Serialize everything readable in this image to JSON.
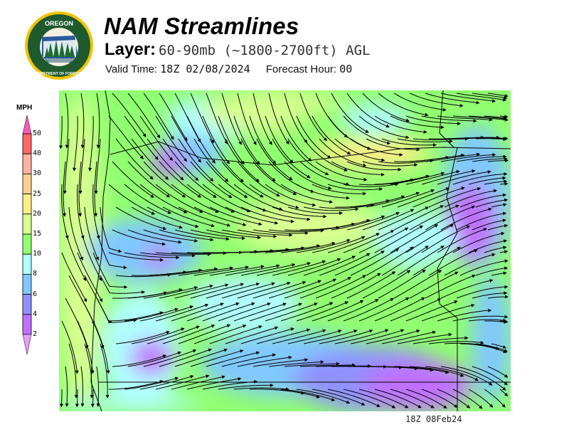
{
  "logo": {
    "top_text": "OREGON",
    "bottom_text": "DEPARTMENT OF FORESTRY"
  },
  "header": {
    "title": "NAM Streamlines",
    "layer_label": "Layer:",
    "layer_value": "60-90mb (~1800-2700ft) AGL",
    "valid_time_label": "Valid Time:",
    "valid_time_value": "18Z 02/08/2024",
    "forecast_hour_label": "Forecast Hour:",
    "forecast_hour_value": "00"
  },
  "colorbar": {
    "unit": "MPH",
    "ticks": [
      "50",
      "40",
      "30",
      "25",
      "20",
      "15",
      "10",
      "8",
      "6",
      "4",
      "2"
    ],
    "colors": [
      "#ff6666",
      "#ffb0a0",
      "#ffd090",
      "#ffee88",
      "#d8ff90",
      "#90ff70",
      "#b0ffff",
      "#80c8ff",
      "#9090ff",
      "#c070ff"
    ],
    "over_color": "#ff5ab4",
    "under_color": "#e8a0f8"
  },
  "map": {
    "timestamp": "18Z 08Feb24"
  }
}
